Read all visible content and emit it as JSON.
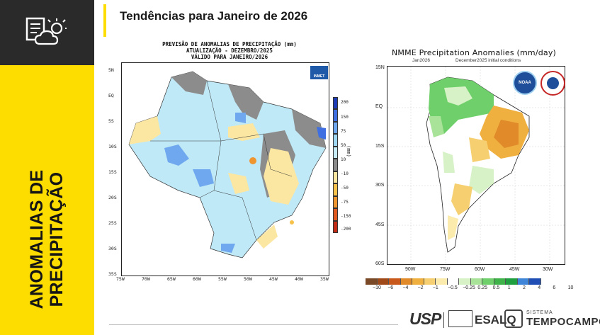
{
  "header": {
    "title": "Tendências para Janeiro de 2026"
  },
  "sidebar": {
    "title_line1": "ANOMALIAS DE",
    "title_line2": "PRECIPITAÇÃO",
    "icon": "weather-report-icon"
  },
  "left_map": {
    "title_line1": "PREVISÃO DE ANOMALIAS DE PRECIPITAÇÃO (mm)",
    "title_line2": "ATUALIZAÇÃO - DEZEMBRO/2025",
    "title_line3": "VÁLIDO PARA JANEIRO/2026",
    "logo": "INMET",
    "unit": "(mm)",
    "y_ticks": [
      "5N",
      "EQ",
      "5S",
      "10S",
      "15S",
      "20S",
      "25S",
      "30S",
      "35S"
    ],
    "x_ticks": [
      "75W",
      "70W",
      "65W",
      "60W",
      "55W",
      "50W",
      "45W",
      "40W",
      "35W"
    ],
    "colorbar_labels": [
      "200",
      "150",
      "75",
      "50",
      "10",
      "-10",
      "-50",
      "-75",
      "-150",
      "-200"
    ],
    "colorbar_colors": [
      "#1c3bb5",
      "#3f6fe0",
      "#6fa8ee",
      "#9fd6f2",
      "#c8ecf7",
      "#8c8c8c",
      "#fbe7a1",
      "#f6c24c",
      "#ef9530",
      "#e05a1f",
      "#c22b15"
    ]
  },
  "right_map": {
    "title": "NMME Precipitation Anomalies (mm/day)",
    "subtitle_left": "Jan2026",
    "subtitle_right": "December2025 initial conditions",
    "y_ticks": [
      "15N",
      "EQ",
      "15S",
      "30S",
      "45S",
      "60S"
    ],
    "x_ticks": [
      "90W",
      "75W",
      "60W",
      "45W",
      "30W"
    ],
    "logo_noaa": "NOAA",
    "logo_nws": "NATIONAL WEATHER SERVICE",
    "colorbar_labels": [
      "−10",
      "−6",
      "−4",
      "−2",
      "−1",
      "−0.5",
      "−0.25",
      "0.25",
      "0.5",
      "1",
      "2",
      "4",
      "6",
      "10"
    ],
    "colorbar_colors": [
      "#7a4a28",
      "#a04a1a",
      "#c9581c",
      "#e08a2a",
      "#f0b040",
      "#f6d070",
      "#fbecae",
      "#ffffff",
      "#d6f2c6",
      "#a9e39a",
      "#6fcf6a",
      "#3fb34a",
      "#1f9f3f",
      "#3f86d8",
      "#1f4fb5"
    ]
  },
  "footer": {
    "logo_usp": "USP",
    "logo_esalq": "ESALQ",
    "logo_sistema": "SISTEMA",
    "logo_tempocampo": "TEMPOCAMPO"
  }
}
